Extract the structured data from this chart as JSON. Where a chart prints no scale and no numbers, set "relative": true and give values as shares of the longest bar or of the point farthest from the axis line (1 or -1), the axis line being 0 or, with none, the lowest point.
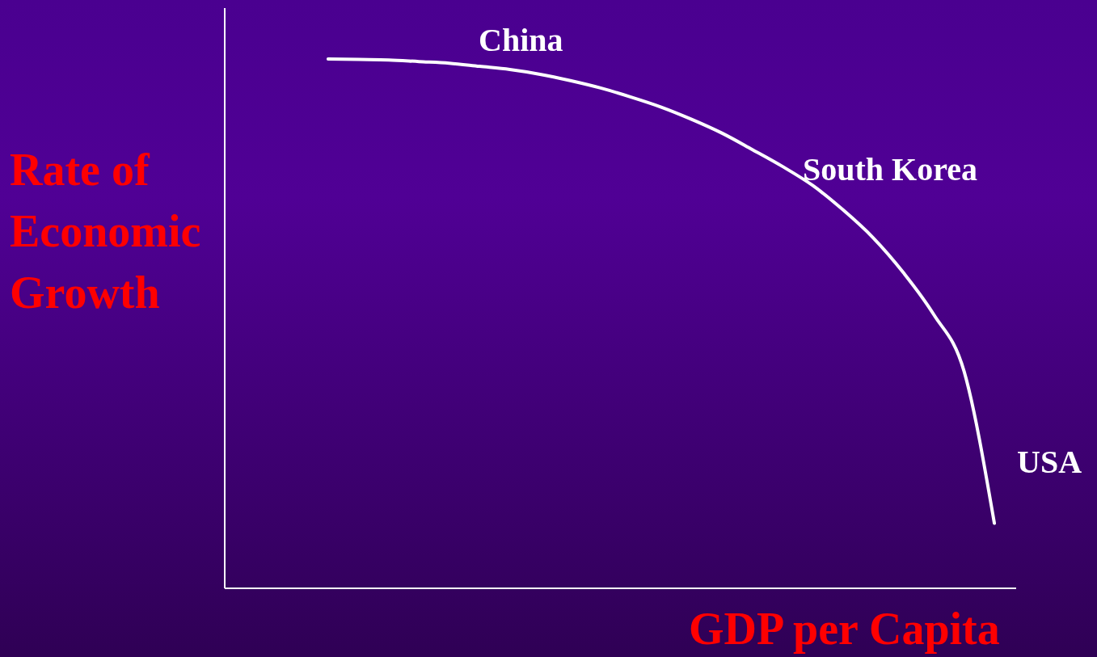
{
  "chart_data": {
    "type": "line",
    "relative": true,
    "xlabel": "GDP per Capita",
    "ylabel": "Rate of Economic Growth",
    "categories": [
      null,
      null,
      null,
      null,
      null,
      null,
      null,
      null,
      null,
      null,
      null,
      null,
      null,
      null,
      null,
      null,
      null,
      null,
      null,
      null,
      null,
      null,
      null
    ],
    "series": [
      {
        "color": "#ffffff",
        "values": [
          1,
          0.999,
          0.998,
          0.995,
          0.992,
          0.986,
          0.98,
          0.971,
          0.959,
          0.945,
          0.928,
          0.909,
          0.886,
          0.86,
          0.829,
          0.797,
          0.761,
          0.715,
          0.662,
          0.596,
          0.517,
          0.41,
          0.123
        ]
      }
    ],
    "annotations": [
      "China",
      "South Korea",
      "USA"
    ],
    "grid": false,
    "legend": false
  }
}
